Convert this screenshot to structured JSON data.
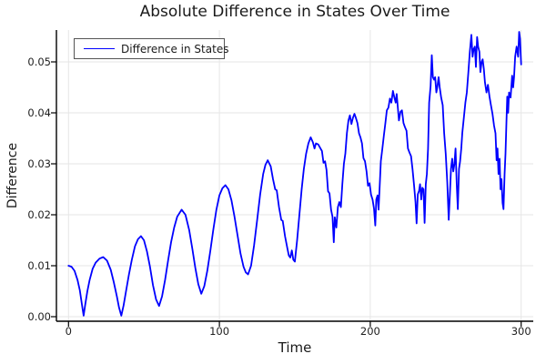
{
  "colors": {
    "line": "#0000ff",
    "grid": "#e6e6e6",
    "spine": "#000000",
    "text": "#1a1a1a",
    "legend_border": "#555555",
    "background": "#ffffff"
  },
  "chart_data": {
    "type": "line",
    "title": "Absolute Difference in States Over Time",
    "xlabel": "Time",
    "ylabel": "Difference",
    "xlim": [
      -8,
      308
    ],
    "ylim": [
      -0.0009,
      0.0563
    ],
    "grid": true,
    "legend": {
      "position": "top-left",
      "entries": [
        {
          "label": "Difference in States",
          "color": "#0000ff"
        }
      ]
    },
    "xticks": {
      "values": [
        0,
        100,
        200,
        300
      ],
      "labels": [
        "0",
        "100",
        "200",
        "300"
      ]
    },
    "yticks": {
      "values": [
        0,
        0.01,
        0.02,
        0.03,
        0.04,
        0.05
      ],
      "labels": [
        "0.00",
        "0.01",
        "0.02",
        "0.03",
        "0.04",
        "0.05"
      ]
    },
    "series": [
      {
        "name": "Difference in States",
        "color": "#0000ff",
        "points": [
          [
            0,
            0.01
          ],
          [
            2,
            0.0098
          ],
          [
            4,
            0.009
          ],
          [
            6,
            0.0072
          ],
          [
            7.5,
            0.0052
          ],
          [
            9,
            0.0022
          ],
          [
            10,
            0.0002
          ],
          [
            11,
            0.0022
          ],
          [
            12.5,
            0.005
          ],
          [
            14,
            0.0072
          ],
          [
            16,
            0.0094
          ],
          [
            18,
            0.0106
          ],
          [
            20.5,
            0.0114
          ],
          [
            23,
            0.0117
          ],
          [
            25.5,
            0.011
          ],
          [
            28,
            0.0092
          ],
          [
            30,
            0.0068
          ],
          [
            32,
            0.004
          ],
          [
            33.5,
            0.0018
          ],
          [
            35,
            0.0002
          ],
          [
            36.5,
            0.0022
          ],
          [
            38,
            0.0048
          ],
          [
            40,
            0.0082
          ],
          [
            42,
            0.0112
          ],
          [
            44,
            0.0138
          ],
          [
            46,
            0.0152
          ],
          [
            48,
            0.0158
          ],
          [
            50,
            0.015
          ],
          [
            52,
            0.0128
          ],
          [
            54,
            0.0098
          ],
          [
            56,
            0.0062
          ],
          [
            58,
            0.0034
          ],
          [
            60,
            0.0021
          ],
          [
            62,
            0.004
          ],
          [
            64,
            0.0072
          ],
          [
            66,
            0.011
          ],
          [
            68,
            0.0146
          ],
          [
            70,
            0.0175
          ],
          [
            72,
            0.0196
          ],
          [
            75,
            0.021
          ],
          [
            77.5,
            0.02
          ],
          [
            80,
            0.017
          ],
          [
            82,
            0.0134
          ],
          [
            84,
            0.0096
          ],
          [
            86,
            0.0064
          ],
          [
            88,
            0.0045
          ],
          [
            90,
            0.006
          ],
          [
            92,
            0.009
          ],
          [
            94,
            0.013
          ],
          [
            96,
            0.0172
          ],
          [
            98,
            0.021
          ],
          [
            100,
            0.0238
          ],
          [
            102,
            0.0252
          ],
          [
            104,
            0.0258
          ],
          [
            106,
            0.025
          ],
          [
            108,
            0.0228
          ],
          [
            110,
            0.0196
          ],
          [
            112,
            0.016
          ],
          [
            114,
            0.0124
          ],
          [
            116,
            0.0098
          ],
          [
            117.5,
            0.0087
          ],
          [
            119,
            0.0083
          ],
          [
            121,
            0.01
          ],
          [
            123,
            0.014
          ],
          [
            125,
            0.019
          ],
          [
            127,
            0.024
          ],
          [
            129,
            0.028
          ],
          [
            130.5,
            0.0298
          ],
          [
            132,
            0.0307
          ],
          [
            134,
            0.0295
          ],
          [
            135.5,
            0.027
          ],
          [
            137,
            0.025
          ],
          [
            138,
            0.0248
          ],
          [
            139.5,
            0.0215
          ],
          [
            141,
            0.019
          ],
          [
            142,
            0.0188
          ],
          [
            143.5,
            0.0158
          ],
          [
            145,
            0.0135
          ],
          [
            146,
            0.012
          ],
          [
            147,
            0.0116
          ],
          [
            148,
            0.013
          ],
          [
            149,
            0.0112
          ],
          [
            150,
            0.0108
          ],
          [
            151.5,
            0.015
          ],
          [
            153,
            0.02
          ],
          [
            154.5,
            0.025
          ],
          [
            156,
            0.029
          ],
          [
            157.5,
            0.032
          ],
          [
            159,
            0.034
          ],
          [
            160.5,
            0.0352
          ],
          [
            162,
            0.0342
          ],
          [
            163,
            0.033
          ],
          [
            164,
            0.034
          ],
          [
            165.5,
            0.0338
          ],
          [
            167,
            0.033
          ],
          [
            168,
            0.0325
          ],
          [
            169,
            0.0302
          ],
          [
            170,
            0.0305
          ],
          [
            171,
            0.0288
          ],
          [
            172,
            0.0246
          ],
          [
            173,
            0.0242
          ],
          [
            174,
            0.021
          ],
          [
            175,
            0.0196
          ],
          [
            175.8,
            0.0146
          ],
          [
            176.5,
            0.0195
          ],
          [
            177.5,
            0.0175
          ],
          [
            178.5,
            0.0215
          ],
          [
            179.5,
            0.0225
          ],
          [
            180.5,
            0.0215
          ],
          [
            181.5,
            0.026
          ],
          [
            182.5,
            0.03
          ],
          [
            183.5,
            0.032
          ],
          [
            184.5,
            0.036
          ],
          [
            185.5,
            0.0385
          ],
          [
            186.5,
            0.0395
          ],
          [
            187.5,
            0.0378
          ],
          [
            188.5,
            0.039
          ],
          [
            189.5,
            0.0398
          ],
          [
            190.5,
            0.039
          ],
          [
            191.5,
            0.038
          ],
          [
            192.5,
            0.036
          ],
          [
            193.5,
            0.0352
          ],
          [
            194.5,
            0.034
          ],
          [
            195.5,
            0.0311
          ],
          [
            196.5,
            0.0305
          ],
          [
            197.5,
            0.0285
          ],
          [
            198.5,
            0.0257
          ],
          [
            199.5,
            0.0262
          ],
          [
            200.5,
            0.024
          ],
          [
            201.5,
            0.023
          ],
          [
            202.5,
            0.0212
          ],
          [
            203.3,
            0.0179
          ],
          [
            204,
            0.023
          ],
          [
            204.8,
            0.0238
          ],
          [
            205.5,
            0.021
          ],
          [
            206.3,
            0.0258
          ],
          [
            207,
            0.0305
          ],
          [
            208,
            0.033
          ],
          [
            209,
            0.0355
          ],
          [
            210,
            0.038
          ],
          [
            211,
            0.0405
          ],
          [
            212,
            0.041
          ],
          [
            213,
            0.0428
          ],
          [
            214,
            0.042
          ],
          [
            215,
            0.0443
          ],
          [
            216,
            0.043
          ],
          [
            216.8,
            0.042
          ],
          [
            217.5,
            0.0437
          ],
          [
            218.3,
            0.041
          ],
          [
            219,
            0.0385
          ],
          [
            220,
            0.0402
          ],
          [
            221,
            0.0405
          ],
          [
            222,
            0.038
          ],
          [
            223,
            0.0372
          ],
          [
            224,
            0.0365
          ],
          [
            225,
            0.033
          ],
          [
            226,
            0.0322
          ],
          [
            227,
            0.0315
          ],
          [
            228,
            0.029
          ],
          [
            229,
            0.0258
          ],
          [
            230,
            0.0225
          ],
          [
            230.7,
            0.0183
          ],
          [
            231.5,
            0.024
          ],
          [
            232.3,
            0.0247
          ],
          [
            233,
            0.026
          ],
          [
            233.8,
            0.023
          ],
          [
            234.5,
            0.0253
          ],
          [
            235.3,
            0.025
          ],
          [
            236,
            0.0184
          ],
          [
            236.8,
            0.026
          ],
          [
            237.5,
            0.028
          ],
          [
            238.3,
            0.033
          ],
          [
            239,
            0.042
          ],
          [
            240,
            0.0453
          ],
          [
            240.8,
            0.0513
          ],
          [
            241.5,
            0.047
          ],
          [
            242.3,
            0.0465
          ],
          [
            243,
            0.047
          ],
          [
            243.8,
            0.044
          ],
          [
            244.5,
            0.0452
          ],
          [
            245.3,
            0.047
          ],
          [
            246,
            0.045
          ],
          [
            247,
            0.043
          ],
          [
            248,
            0.0415
          ],
          [
            249,
            0.036
          ],
          [
            250,
            0.032
          ],
          [
            251,
            0.0264
          ],
          [
            252,
            0.019
          ],
          [
            252.8,
            0.024
          ],
          [
            253.5,
            0.029
          ],
          [
            254.3,
            0.031
          ],
          [
            255,
            0.0285
          ],
          [
            255.8,
            0.03
          ],
          [
            256.5,
            0.033
          ],
          [
            257.3,
            0.026
          ],
          [
            258,
            0.0211
          ],
          [
            258.8,
            0.029
          ],
          [
            259.5,
            0.0305
          ],
          [
            260.3,
            0.033
          ],
          [
            261,
            0.036
          ],
          [
            262,
            0.039
          ],
          [
            263,
            0.042
          ],
          [
            264,
            0.044
          ],
          [
            265,
            0.048
          ],
          [
            266,
            0.052
          ],
          [
            267,
            0.0553
          ],
          [
            267.8,
            0.051
          ],
          [
            268.5,
            0.0525
          ],
          [
            269.3,
            0.053
          ],
          [
            270,
            0.049
          ],
          [
            270.8,
            0.0549
          ],
          [
            271.5,
            0.053
          ],
          [
            272.3,
            0.052
          ],
          [
            273,
            0.048
          ],
          [
            273.8,
            0.05
          ],
          [
            274.5,
            0.0505
          ],
          [
            275.3,
            0.0486
          ],
          [
            276,
            0.046
          ],
          [
            277,
            0.044
          ],
          [
            278,
            0.0455
          ],
          [
            279,
            0.0432
          ],
          [
            280,
            0.0415
          ],
          [
            281,
            0.0398
          ],
          [
            282,
            0.0375
          ],
          [
            283,
            0.036
          ],
          [
            283.7,
            0.0307
          ],
          [
            284.3,
            0.033
          ],
          [
            285,
            0.028
          ],
          [
            285.7,
            0.031
          ],
          [
            286.3,
            0.025
          ],
          [
            287,
            0.027
          ],
          [
            287.7,
            0.0223
          ],
          [
            288.3,
            0.0211
          ],
          [
            289,
            0.028
          ],
          [
            289.6,
            0.032
          ],
          [
            290.2,
            0.038
          ],
          [
            290.8,
            0.0432
          ],
          [
            291.4,
            0.04
          ],
          [
            292,
            0.044
          ],
          [
            293,
            0.043
          ],
          [
            294,
            0.0473
          ],
          [
            294.7,
            0.045
          ],
          [
            295.3,
            0.047
          ],
          [
            296,
            0.051
          ],
          [
            297,
            0.053
          ],
          [
            298,
            0.051
          ],
          [
            298.7,
            0.0559
          ],
          [
            299.3,
            0.0545
          ],
          [
            300,
            0.0495
          ]
        ]
      }
    ]
  }
}
